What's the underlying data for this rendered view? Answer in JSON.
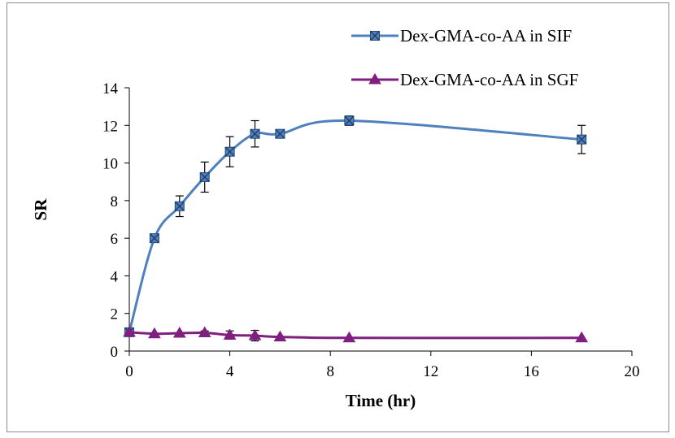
{
  "chart_data": {
    "type": "line",
    "title": "",
    "xlabel": "Time (hr)",
    "ylabel": "SR",
    "xlim": [
      0,
      20
    ],
    "ylim": [
      0,
      14
    ],
    "x_ticks": [
      0,
      4,
      8,
      12,
      16,
      20
    ],
    "y_ticks": [
      0,
      2,
      4,
      6,
      8,
      10,
      12,
      14
    ],
    "grid": false,
    "legend_position": "top-right",
    "series": [
      {
        "name": "Dex-GMA-co-AA in SIF",
        "color": "#4F81BD",
        "marker": "square-x",
        "x": [
          0,
          1,
          2,
          3,
          4,
          5,
          6,
          8.75,
          18
        ],
        "y": [
          1.0,
          6.0,
          7.7,
          9.25,
          10.6,
          11.55,
          11.55,
          12.25,
          11.25
        ],
        "error": [
          0,
          0,
          0.55,
          0.8,
          0.8,
          0.7,
          0,
          0.25,
          0.75
        ]
      },
      {
        "name": "Dex-GMA-co-AA in SGF",
        "color": "#7F1F7F",
        "marker": "triangle",
        "x": [
          0,
          1,
          2,
          3,
          4,
          5,
          6,
          8.75,
          18
        ],
        "y": [
          1.0,
          0.92,
          0.95,
          0.97,
          0.85,
          0.82,
          0.75,
          0.7,
          0.7
        ],
        "error": [
          0,
          0,
          0,
          0.1,
          0.22,
          0.28,
          0,
          0,
          0
        ]
      }
    ]
  }
}
